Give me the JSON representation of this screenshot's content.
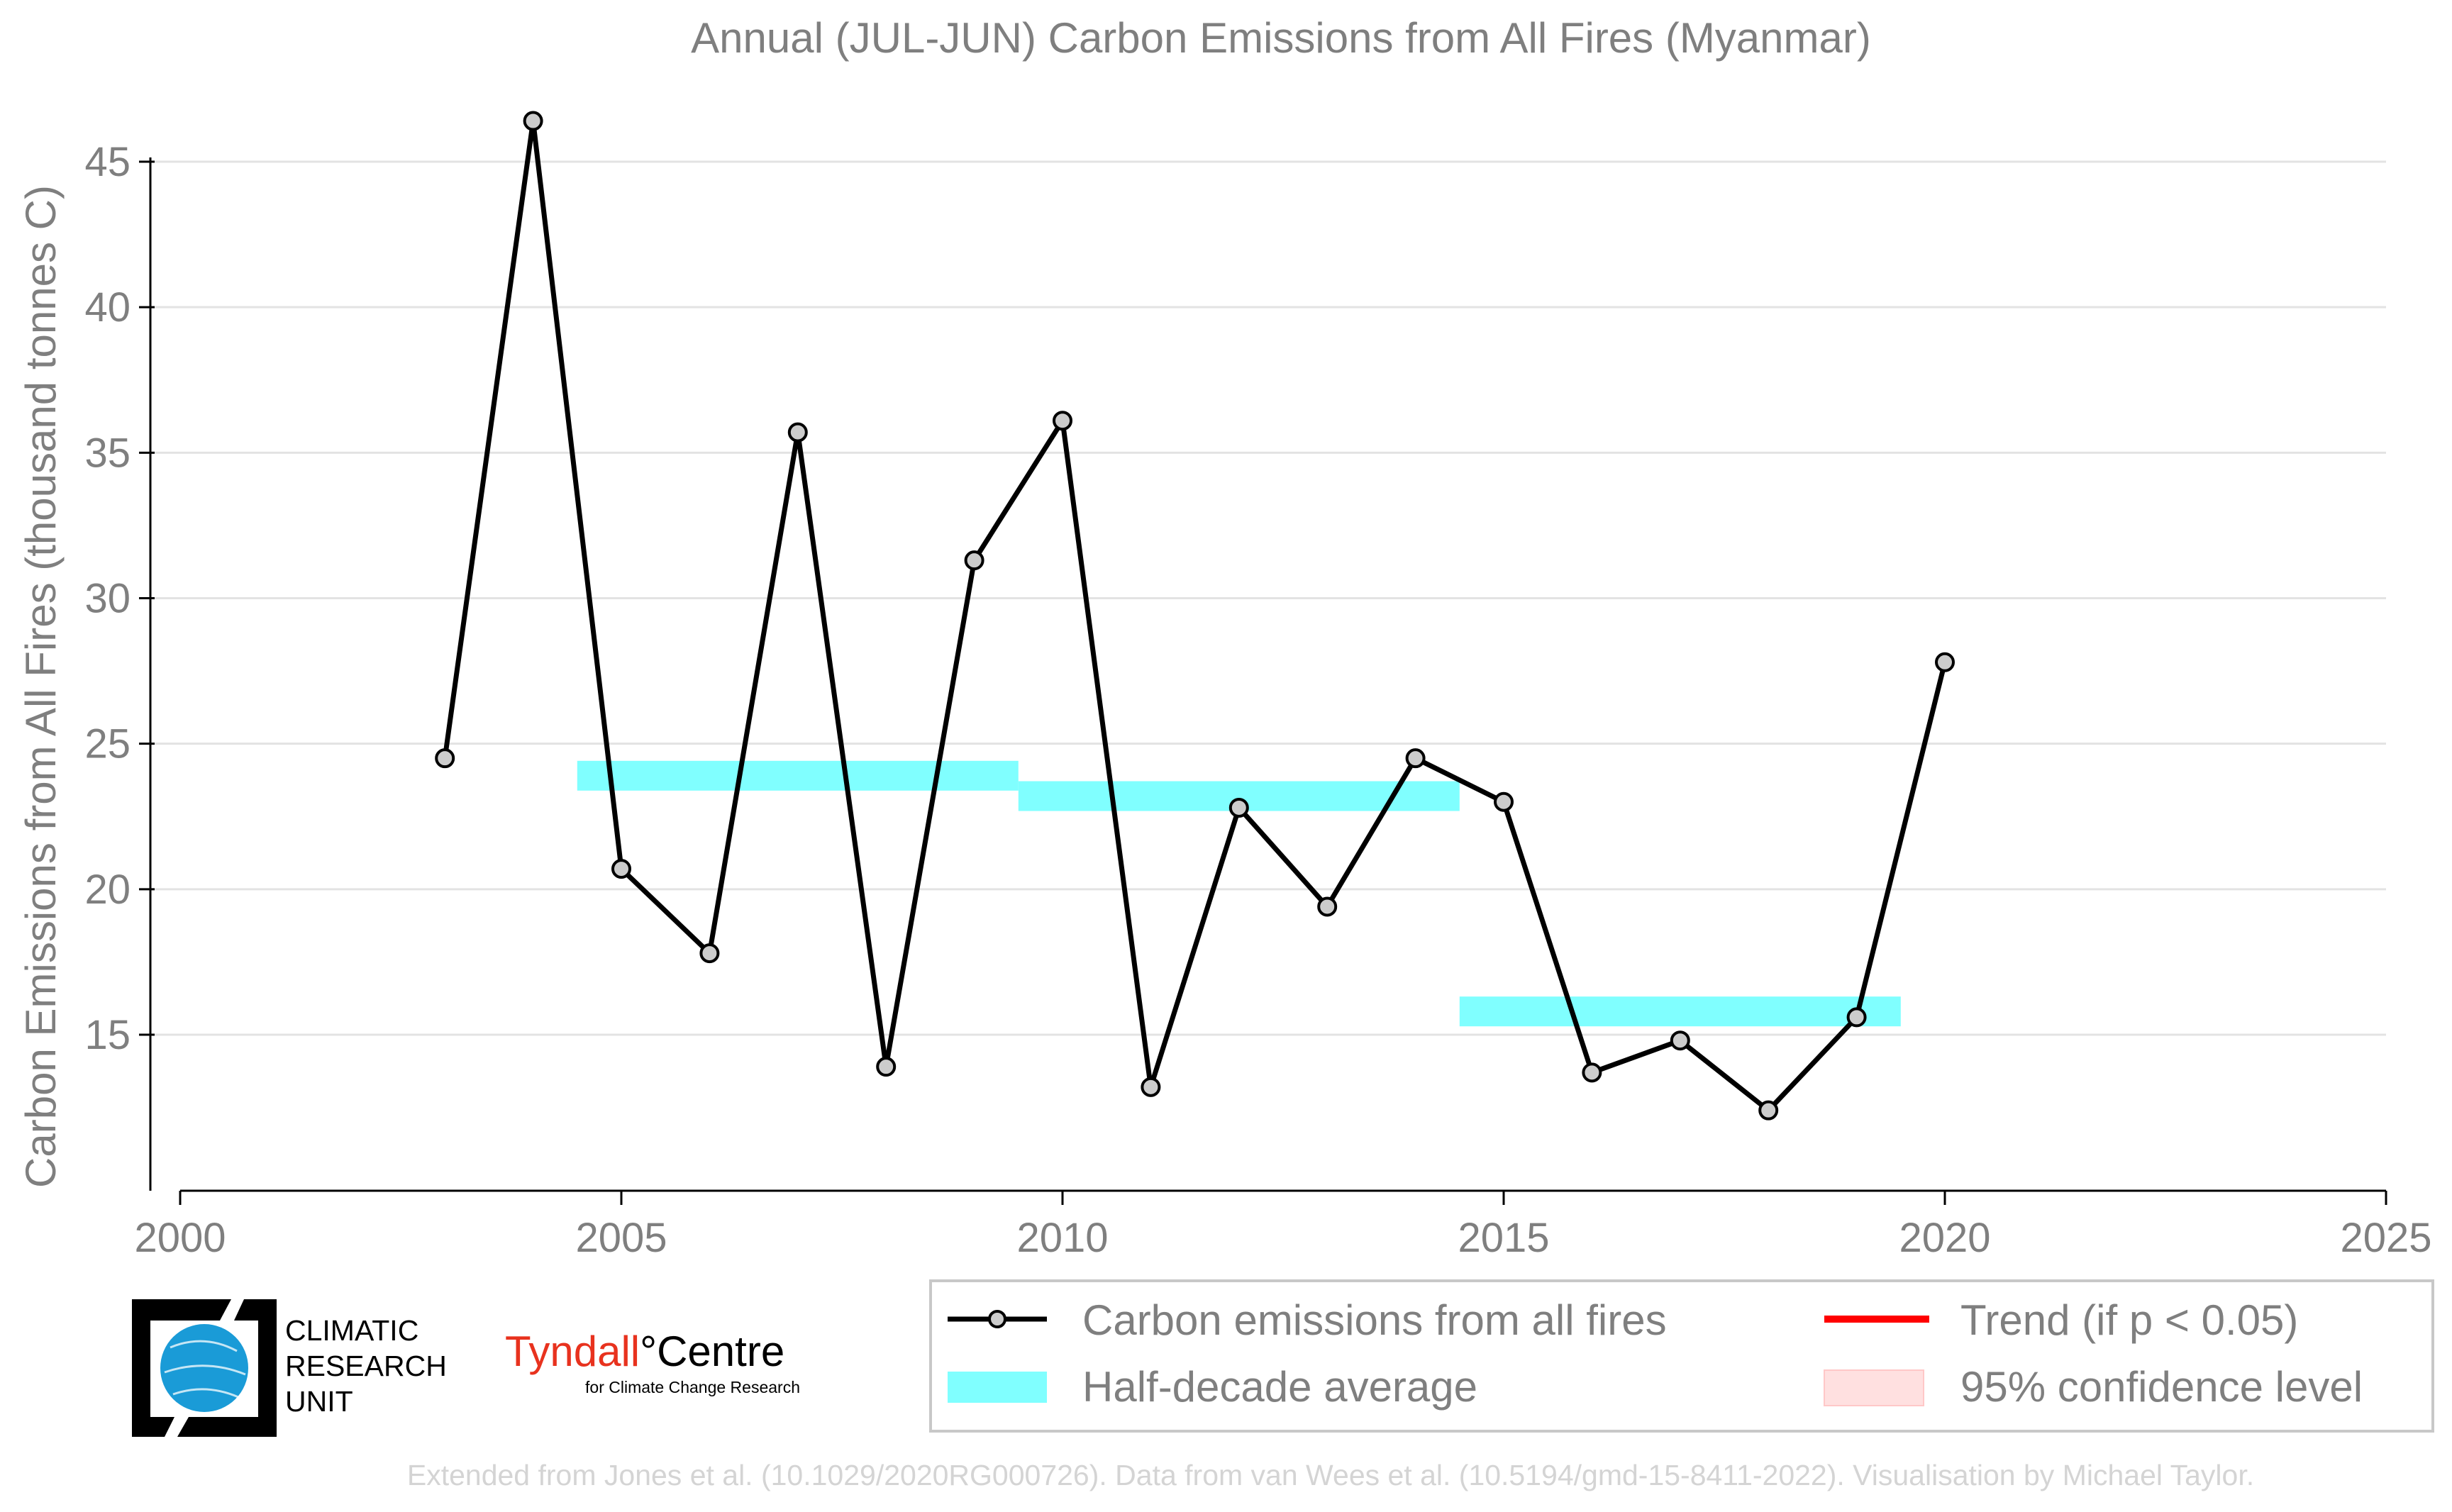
{
  "chart_data": {
    "type": "line",
    "title": "Annual (JUL-JUN) Carbon Emissions from All Fires (Myanmar)",
    "xlabel": "",
    "ylabel": "Carbon Emissions from All Fires (thousand tonnes C)",
    "xlim": [
      2000,
      2025
    ],
    "ylim": [
      9.7,
      46.5
    ],
    "x_ticks": [
      2000,
      2005,
      2010,
      2015,
      2020,
      2025
    ],
    "y_ticks": [
      15,
      20,
      25,
      30,
      35,
      40,
      45
    ],
    "grid": "horizontal",
    "series": [
      {
        "name": "Carbon emissions from all fires",
        "color": "#000000",
        "marker_fill": "#cccccc",
        "x": [
          2003,
          2004,
          2005,
          2006,
          2007,
          2008,
          2009,
          2010,
          2011,
          2012,
          2013,
          2014,
          2015,
          2016,
          2017,
          2018,
          2019,
          2020
        ],
        "y": [
          24.5,
          46.4,
          20.7,
          17.8,
          35.7,
          13.9,
          31.3,
          36.1,
          13.2,
          22.8,
          19.4,
          24.5,
          23.0,
          13.7,
          14.8,
          12.4,
          15.6,
          27.8
        ]
      }
    ],
    "half_decade_averages": [
      {
        "x_start": 2004.5,
        "x_end": 2009.5,
        "value": 23.9
      },
      {
        "x_start": 2009.5,
        "x_end": 2014.5,
        "value": 23.2
      },
      {
        "x_start": 2014.5,
        "x_end": 2019.5,
        "value": 15.8
      }
    ],
    "half_decade_color": "#80ffff",
    "trend_color": "#ff0000",
    "ci_color": "#ffe0e0",
    "legend": {
      "placement": "bottom-right",
      "items": [
        {
          "label": "Carbon emissions from all fires",
          "kind": "line-marker"
        },
        {
          "label": "Trend (if p < 0.05)",
          "kind": "trend"
        },
        {
          "label": "Half-decade average",
          "kind": "band"
        },
        {
          "label": "95% confidence level",
          "kind": "ci"
        }
      ]
    }
  },
  "logos": {
    "cru": [
      "CLIMATIC",
      "RESEARCH",
      "UNIT"
    ],
    "tyndall_name": "Tyndall",
    "tyndall_centre": "°Centre",
    "tyndall_sub": "for Climate Change Research"
  },
  "footer": "Extended from Jones et al. (10.1029/2020RG000726). Data from van Wees et al. (10.5194/gmd-15-8411-2022). Visualisation by Michael Taylor.",
  "colors": {
    "text_gray": "#7f7f7f",
    "footer_gray": "#d4d4d4",
    "tyndall_red": "#e8321e",
    "globe_blue": "#1a9bd7"
  }
}
